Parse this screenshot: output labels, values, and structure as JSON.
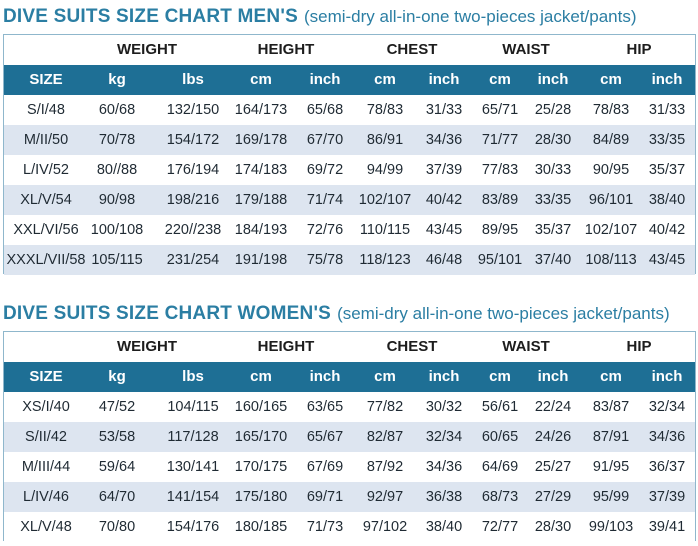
{
  "men": {
    "title": "DIVE SUITS SIZE CHART MEN'S",
    "subtitle": "(semi-dry all-in-one two-pieces jacket/pants)",
    "groups": [
      "WEIGHT",
      "HEIGHT",
      "CHEST",
      "WAIST",
      "HIP"
    ],
    "subheaders": [
      "SIZE",
      "kg",
      "lbs",
      "cm",
      "inch",
      "cm",
      "inch",
      "cm",
      "inch",
      "cm",
      "inch"
    ],
    "rows": [
      [
        "S/I/48",
        "60/68",
        "132/150",
        "164/173",
        "65/68",
        "78/83",
        "31/33",
        "65/71",
        "25/28",
        "78/83",
        "31/33"
      ],
      [
        "M/II/50",
        "70/78",
        "154/172",
        "169/178",
        "67/70",
        "86/91",
        "34/36",
        "71/77",
        "28/30",
        "84/89",
        "33/35"
      ],
      [
        "L/IV/52",
        "80//88",
        "176/194",
        "174/183",
        "69/72",
        "94/99",
        "37/39",
        "77/83",
        "30/33",
        "90/95",
        "35/37"
      ],
      [
        "XL/V/54",
        "90/98",
        "198/216",
        "179/188",
        "71/74",
        "102/107",
        "40/42",
        "83/89",
        "33/35",
        "96/101",
        "38/40"
      ],
      [
        "XXL/VI/56",
        "100/108",
        "220//238",
        "184/193",
        "72/76",
        "110/115",
        "43/45",
        "89/95",
        "35/37",
        "102/107",
        "40/42"
      ],
      [
        "XXXL/VII/58",
        "105/115",
        "231/254",
        "191/198",
        "75/78",
        "118/123",
        "46/48",
        "95/101",
        "37/40",
        "108/113",
        "43/45"
      ]
    ]
  },
  "women": {
    "title": "DIVE SUITS SIZE CHART  WOMEN'S",
    "subtitle": "(semi-dry all-in-one two-pieces jacket/pants)",
    "groups": [
      "WEIGHT",
      "HEIGHT",
      "CHEST",
      "WAIST",
      "HIP"
    ],
    "subheaders": [
      "SIZE",
      "kg",
      "lbs",
      "cm",
      "inch",
      "cm",
      "inch",
      "cm",
      "inch",
      "cm",
      "inch"
    ],
    "rows": [
      [
        "XS/I/40",
        "47/52",
        "104/115",
        "160/165",
        "63/65",
        "77/82",
        "30/32",
        "56/61",
        "22/24",
        "83/87",
        "32/34"
      ],
      [
        "S/II/42",
        "53/58",
        "117/128",
        "165/170",
        "65/67",
        "82/87",
        "32/34",
        "60/65",
        "24/26",
        "87/91",
        "34/36"
      ],
      [
        "M/III/44",
        "59/64",
        "130/141",
        "170/175",
        "67/69",
        "87/92",
        "34/36",
        "64/69",
        "25/27",
        "91/95",
        "36/37"
      ],
      [
        "L/IV/46",
        "64/70",
        "141/154",
        "175/180",
        "69/71",
        "92/97",
        "36/38",
        "68/73",
        "27/29",
        "95/99",
        "37/39"
      ],
      [
        "XL/V/48",
        "70/80",
        "154/176",
        "180/185",
        "71/73",
        "97/102",
        "38/40",
        "72/77",
        "28/30",
        "99/103",
        "39/41"
      ]
    ]
  }
}
